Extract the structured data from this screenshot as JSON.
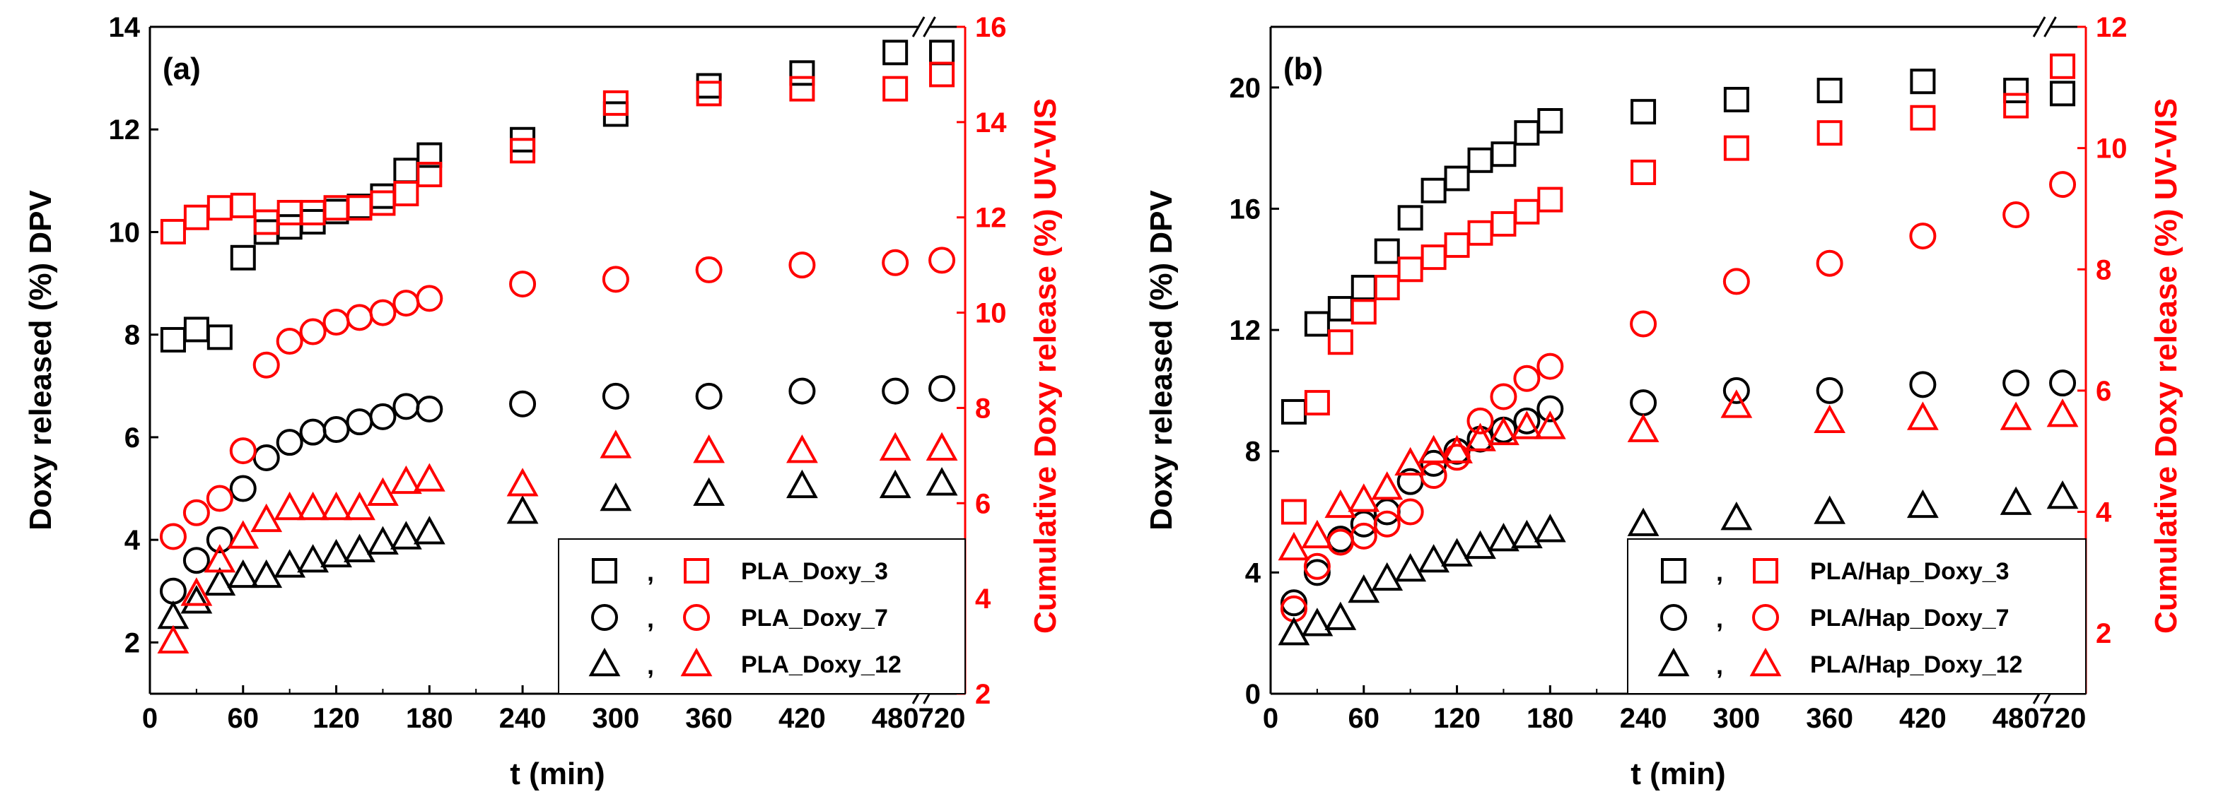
{
  "colors": {
    "dpv": "#000000",
    "uvvis": "#ff0000"
  },
  "chart_data": [
    {
      "type": "scatter",
      "panel_label": "(a)",
      "xlabel": "t (min)",
      "x_ticks": [
        "0",
        "60",
        "120",
        "180",
        "240",
        "300",
        "360",
        "420",
        "480",
        "720"
      ],
      "x_axis_break": "between 480 and 720",
      "ylabel_left": "Doxy released (%) DPV",
      "ylabel_right": "Cumulative Doxy release (%) UV-VIS",
      "ylim_left": [
        1,
        14
      ],
      "ylim_right": [
        2,
        16
      ],
      "y_ticks_left": [
        "2",
        "4",
        "6",
        "8",
        "10",
        "12",
        "14"
      ],
      "y_ticks_right": [
        "2",
        "4",
        "6",
        "8",
        "10",
        "12",
        "14",
        "16"
      ],
      "legend": {
        "position": "bottom-right",
        "entries": [
          {
            "label": "PLA_Doxy_3",
            "marker": "square",
            "separator": ","
          },
          {
            "label": "PLA_Doxy_7",
            "marker": "circle",
            "separator": ","
          },
          {
            "label": "PLA_Doxy_12",
            "marker": "triangle",
            "separator": ","
          }
        ]
      },
      "series": [
        {
          "name": "PLA_Doxy_3 DPV",
          "marker": "square",
          "color": "black",
          "axis": "left",
          "x": [
            15,
            30,
            45,
            60,
            75,
            90,
            105,
            120,
            135,
            150,
            165,
            180,
            240,
            300,
            360,
            420,
            480,
            720
          ],
          "y": [
            7.9,
            8.1,
            7.95,
            9.5,
            10.0,
            10.1,
            10.2,
            10.4,
            10.5,
            10.7,
            11.2,
            11.5,
            11.8,
            12.3,
            12.85,
            13.1,
            13.5,
            13.5
          ]
        },
        {
          "name": "PLA_Doxy_3 UV-VIS",
          "marker": "square",
          "color": "red",
          "axis": "right",
          "x": [
            15,
            30,
            45,
            60,
            75,
            90,
            105,
            120,
            135,
            150,
            165,
            180,
            240,
            300,
            360,
            420,
            480,
            720
          ],
          "y": [
            11.7,
            12.0,
            12.2,
            12.25,
            11.9,
            12.1,
            12.1,
            12.2,
            12.2,
            12.3,
            12.5,
            12.9,
            13.4,
            14.4,
            14.6,
            14.7,
            14.7,
            15.0
          ]
        },
        {
          "name": "PLA_Doxy_7 DPV",
          "marker": "circle",
          "color": "black",
          "axis": "left",
          "x": [
            15,
            30,
            45,
            60,
            75,
            90,
            105,
            120,
            135,
            150,
            165,
            180,
            240,
            300,
            360,
            420,
            480,
            720
          ],
          "y": [
            3.0,
            3.6,
            4.0,
            5.0,
            5.6,
            5.9,
            6.1,
            6.15,
            6.3,
            6.4,
            6.6,
            6.55,
            6.65,
            6.8,
            6.8,
            6.9,
            6.9,
            6.95
          ]
        },
        {
          "name": "PLA_Doxy_7 UV-VIS",
          "marker": "circle",
          "color": "red",
          "axis": "right",
          "x": [
            15,
            30,
            45,
            60,
            75,
            90,
            105,
            120,
            135,
            150,
            165,
            180,
            240,
            300,
            360,
            420,
            480,
            720
          ],
          "y": [
            5.3,
            5.8,
            6.1,
            7.1,
            8.9,
            9.4,
            9.6,
            9.8,
            9.9,
            10.0,
            10.2,
            10.3,
            10.6,
            10.7,
            10.9,
            11.0,
            11.05,
            11.1
          ]
        },
        {
          "name": "PLA_Doxy_12 DPV",
          "marker": "triangle",
          "color": "black",
          "axis": "left",
          "x": [
            15,
            30,
            45,
            60,
            75,
            90,
            105,
            120,
            135,
            150,
            165,
            180,
            240,
            300,
            360,
            420,
            480,
            720
          ],
          "y": [
            2.5,
            2.8,
            3.15,
            3.3,
            3.3,
            3.5,
            3.6,
            3.7,
            3.8,
            3.95,
            4.05,
            4.15,
            4.55,
            4.8,
            4.9,
            5.05,
            5.05,
            5.1
          ]
        },
        {
          "name": "PLA_Doxy_12 UV-VIS",
          "marker": "triangle",
          "color": "red",
          "axis": "right",
          "x": [
            15,
            30,
            45,
            60,
            75,
            90,
            105,
            120,
            135,
            150,
            165,
            180,
            240,
            300,
            360,
            420,
            480,
            720
          ],
          "y": [
            3.1,
            4.1,
            4.8,
            5.3,
            5.65,
            5.9,
            5.9,
            5.9,
            5.9,
            6.2,
            6.45,
            6.5,
            6.4,
            7.2,
            7.1,
            7.1,
            7.15,
            7.15
          ]
        }
      ]
    },
    {
      "type": "scatter",
      "panel_label": "(b)",
      "xlabel": "t (min)",
      "x_ticks": [
        "0",
        "60",
        "120",
        "180",
        "240",
        "300",
        "360",
        "420",
        "480",
        "720"
      ],
      "x_axis_break": "between 480 and 720",
      "ylabel_left": "Doxy released (%) DPV",
      "ylabel_right": "Cumulative Doxy release (%) UV-VIS",
      "ylim_left": [
        0,
        22
      ],
      "ylim_right": [
        1,
        12
      ],
      "y_ticks_left": [
        "0",
        "4",
        "8",
        "12",
        "16",
        "20"
      ],
      "y_ticks_right": [
        "2",
        "4",
        "6",
        "8",
        "10",
        "12"
      ],
      "legend": {
        "position": "bottom-right",
        "entries": [
          {
            "label": "PLA/Hap_Doxy_3",
            "marker": "square",
            "separator": ","
          },
          {
            "label": "PLA/Hap_Doxy_7",
            "marker": "circle",
            "separator": ","
          },
          {
            "label": "PLA/Hap_Doxy_12",
            "marker": "triangle",
            "separator": ","
          }
        ]
      },
      "series": [
        {
          "name": "PLA/Hap_Doxy_3 DPV",
          "marker": "square",
          "color": "black",
          "axis": "left",
          "x": [
            15,
            30,
            45,
            60,
            75,
            90,
            105,
            120,
            135,
            150,
            165,
            180,
            240,
            300,
            360,
            420,
            480,
            720
          ],
          "y": [
            9.3,
            12.2,
            12.7,
            13.4,
            14.6,
            15.7,
            16.6,
            17.0,
            17.6,
            17.8,
            18.5,
            18.9,
            19.2,
            19.6,
            19.9,
            20.2,
            19.9,
            19.8
          ]
        },
        {
          "name": "PLA/Hap_Doxy_3 UV-VIS",
          "marker": "square",
          "color": "red",
          "axis": "right",
          "x": [
            15,
            30,
            45,
            60,
            75,
            90,
            105,
            120,
            135,
            150,
            165,
            180,
            240,
            300,
            360,
            420,
            480,
            720
          ],
          "y": [
            4.0,
            5.8,
            6.8,
            7.3,
            7.7,
            8.0,
            8.2,
            8.4,
            8.6,
            8.75,
            8.95,
            9.15,
            9.6,
            10.0,
            10.25,
            10.5,
            10.7,
            11.35
          ]
        },
        {
          "name": "PLA/Hap_Doxy_7 DPV",
          "marker": "circle",
          "color": "black",
          "axis": "left",
          "x": [
            15,
            30,
            45,
            60,
            75,
            90,
            105,
            120,
            135,
            150,
            165,
            180,
            240,
            300,
            360,
            420,
            480,
            720
          ],
          "y": [
            3.0,
            4.0,
            5.1,
            5.6,
            6.0,
            7.0,
            7.6,
            8.0,
            8.4,
            8.7,
            9.0,
            9.4,
            9.6,
            10.0,
            10.0,
            10.2,
            10.25,
            10.25
          ]
        },
        {
          "name": "PLA/Hap_Doxy_7 UV-VIS",
          "marker": "circle",
          "color": "red",
          "axis": "right",
          "x": [
            15,
            30,
            45,
            60,
            75,
            90,
            105,
            120,
            135,
            150,
            165,
            180,
            240,
            300,
            360,
            420,
            480,
            720
          ],
          "y": [
            2.4,
            3.1,
            3.5,
            3.6,
            3.8,
            4.0,
            4.6,
            4.9,
            5.5,
            5.9,
            6.2,
            6.4,
            7.1,
            7.8,
            8.1,
            8.55,
            8.9,
            9.4
          ]
        },
        {
          "name": "PLA/Hap_Doxy_12 DPV",
          "marker": "triangle",
          "color": "black",
          "axis": "left",
          "x": [
            15,
            30,
            45,
            60,
            75,
            90,
            105,
            120,
            135,
            150,
            165,
            180,
            240,
            300,
            360,
            420,
            480,
            720
          ],
          "y": [
            2.0,
            2.3,
            2.5,
            3.4,
            3.8,
            4.1,
            4.4,
            4.6,
            4.85,
            5.1,
            5.2,
            5.4,
            5.6,
            5.8,
            6.0,
            6.2,
            6.3,
            6.5
          ]
        },
        {
          "name": "PLA/Hap_Doxy_12 UV-VIS",
          "marker": "triangle",
          "color": "red",
          "axis": "right",
          "x": [
            15,
            30,
            45,
            60,
            75,
            90,
            105,
            120,
            135,
            150,
            165,
            180,
            240,
            300,
            360,
            420,
            480,
            720
          ],
          "y": [
            3.4,
            3.6,
            4.1,
            4.2,
            4.4,
            4.8,
            5.0,
            5.0,
            5.2,
            5.3,
            5.4,
            5.4,
            5.35,
            5.75,
            5.5,
            5.55,
            5.55,
            5.6
          ]
        }
      ]
    }
  ]
}
